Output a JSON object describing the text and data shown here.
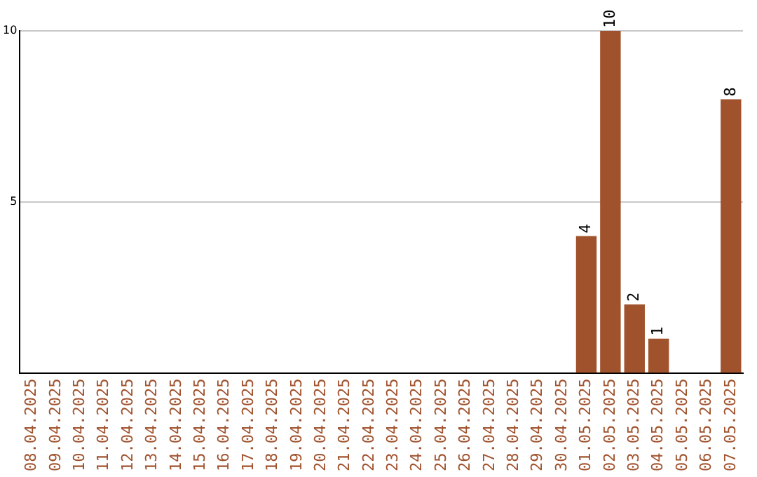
{
  "chart_data": {
    "type": "bar",
    "categories": [
      "08.04.2025",
      "09.04.2025",
      "10.04.2025",
      "11.04.2025",
      "12.04.2025",
      "13.04.2025",
      "14.04.2025",
      "15.04.2025",
      "16.04.2025",
      "17.04.2025",
      "18.04.2025",
      "19.04.2025",
      "20.04.2025",
      "21.04.2025",
      "22.04.2025",
      "23.04.2025",
      "24.04.2025",
      "25.04.2025",
      "26.04.2025",
      "27.04.2025",
      "28.04.2025",
      "29.04.2025",
      "30.04.2025",
      "01.05.2025",
      "02.05.2025",
      "03.05.2025",
      "04.05.2025",
      "05.05.2025",
      "06.05.2025",
      "07.05.2025"
    ],
    "values": [
      0,
      0,
      0,
      0,
      0,
      0,
      0,
      0,
      0,
      0,
      0,
      0,
      0,
      0,
      0,
      0,
      0,
      0,
      0,
      0,
      0,
      0,
      0,
      4,
      10,
      2,
      1,
      0,
      0,
      8
    ],
    "value_labels": [
      null,
      null,
      null,
      null,
      null,
      null,
      null,
      null,
      null,
      null,
      null,
      null,
      null,
      null,
      null,
      null,
      null,
      null,
      null,
      null,
      null,
      null,
      null,
      "4",
      "10",
      "2",
      "1",
      null,
      null,
      "8"
    ],
    "color": "#a0522d",
    "ylim": [
      0,
      10
    ],
    "yticks": [
      5,
      10
    ],
    "grid": "y",
    "legend": false
  }
}
